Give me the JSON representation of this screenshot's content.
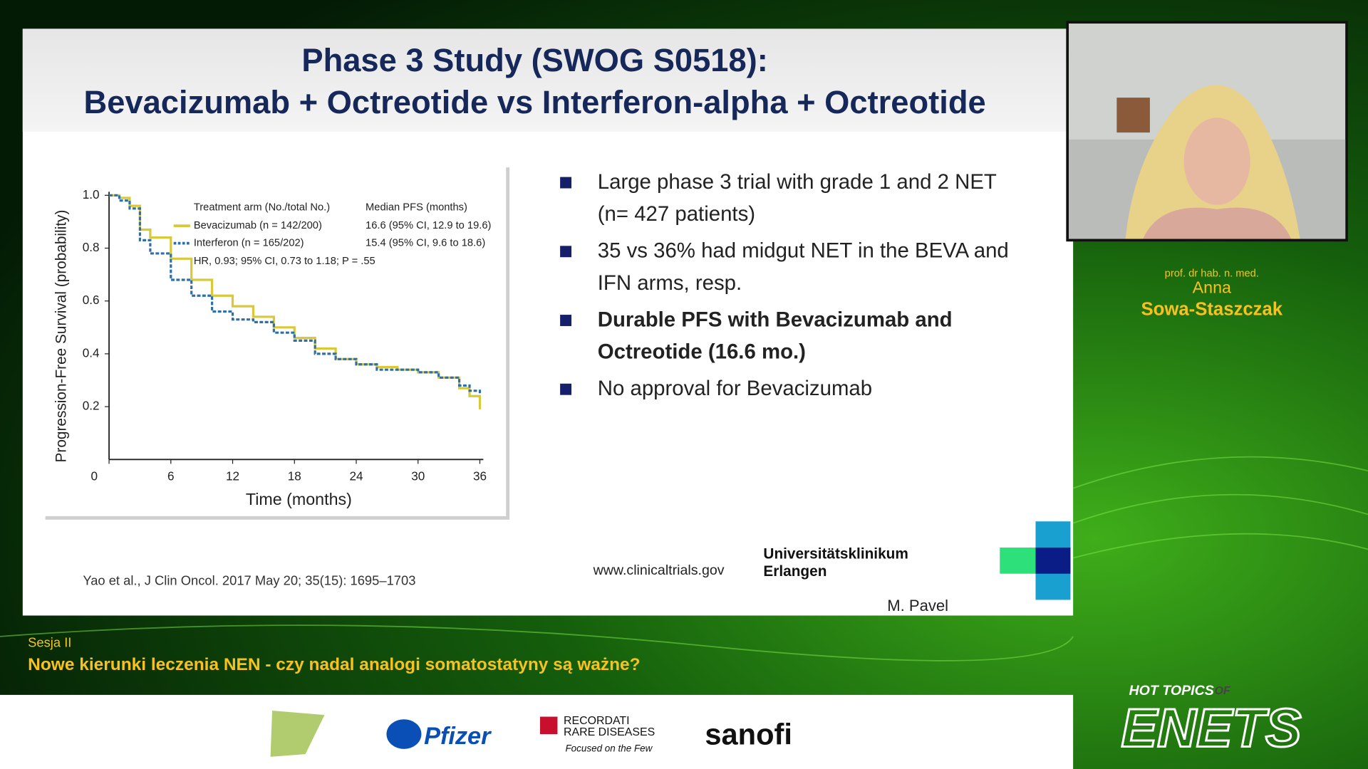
{
  "slide": {
    "title_line1": "Phase 3 Study (SWOG S0518):",
    "title_line2": "Bevacizumab + Octreotide vs Interferon-alpha + Octreotide",
    "bullets": [
      {
        "lines": [
          "Large phase 3 trial with grade 1 and 2 NET",
          "(n= 427 patients)"
        ],
        "bold": false
      },
      {
        "lines": [
          "35 vs 36% had midgut NET in the BEVA and",
          "IFN arms, resp."
        ],
        "bold": false
      },
      {
        "lines": [
          "Durable PFS with Bevacizumab and",
          "Octreotide (16.6 mo.)"
        ],
        "bold": true
      },
      {
        "lines": [
          "No approval for Bevacizumab"
        ],
        "bold": false
      }
    ],
    "citation": "Yao et al., J Clin Oncol. 2017 May 20; 35(15): 1695–1703",
    "website": "www.clinicaltrials.gov",
    "institution": [
      "Universitätsklinikum",
      "Erlangen"
    ],
    "author": "M. Pavel",
    "chart": {
      "type": "line",
      "ylabel": "Progression-Free Survival (probability)",
      "xlabel": "Time (months)",
      "xlim": [
        0,
        36
      ],
      "ylim": [
        0,
        1
      ],
      "xticks": [
        0,
        6,
        12,
        18,
        24,
        30,
        36
      ],
      "yticks": [
        0.2,
        0.4,
        0.6,
        0.8,
        {
          "value": 1,
          "label": "1.0"
        }
      ],
      "legend_header": [
        "Treatment arm (No./total No.)",
        "Median PFS (months)"
      ],
      "hr": "HR, 0.93; 95% CI, 0.73 to 1.18; P = .55",
      "x": [
        0,
        1,
        2,
        3,
        4,
        6,
        8,
        10,
        12,
        14,
        16,
        18,
        20,
        22,
        24,
        26,
        28,
        30,
        32,
        34,
        35,
        36
      ],
      "series": [
        {
          "name": "Bevacizumab (n = 142/200)",
          "median": "16.6 (95% CI, 12.9 to 19.6)",
          "color": "#d8c83a",
          "dash": false,
          "values": [
            1,
            0.99,
            0.96,
            0.87,
            0.84,
            0.76,
            0.68,
            0.62,
            0.58,
            0.54,
            0.5,
            0.46,
            0.42,
            0.38,
            0.36,
            0.35,
            0.34,
            0.33,
            0.31,
            0.27,
            0.24,
            0.19
          ]
        },
        {
          "name": "Interferon (n = 165/202)",
          "median": "15.4 (95% CI, 9.6 to 18.6)",
          "color": "#2f6fa8",
          "dash": true,
          "values": [
            1,
            0.98,
            0.95,
            0.83,
            0.78,
            0.68,
            0.62,
            0.56,
            0.53,
            0.52,
            0.48,
            0.45,
            0.4,
            0.38,
            0.36,
            0.34,
            0.34,
            0.33,
            0.31,
            0.28,
            0.26,
            0.25
          ]
        }
      ]
    }
  },
  "speaker": {
    "title": "prof. dr hab. n. med.",
    "first_name": "Anna",
    "last_name": "Sowa-Staszczak"
  },
  "session": {
    "label": "Sesja II",
    "title": "Nowe kierunki leczenia NEN - czy nadal analogi somatostatyny są ważne?"
  },
  "sponsors": [
    "Pfizer",
    "RECORDATI",
    "RARE DISEASES",
    "Focused on the Few",
    "sanofi"
  ],
  "brand": {
    "line1": "HOT TOPICS",
    "of": "OF",
    "line2": "ENETS"
  }
}
